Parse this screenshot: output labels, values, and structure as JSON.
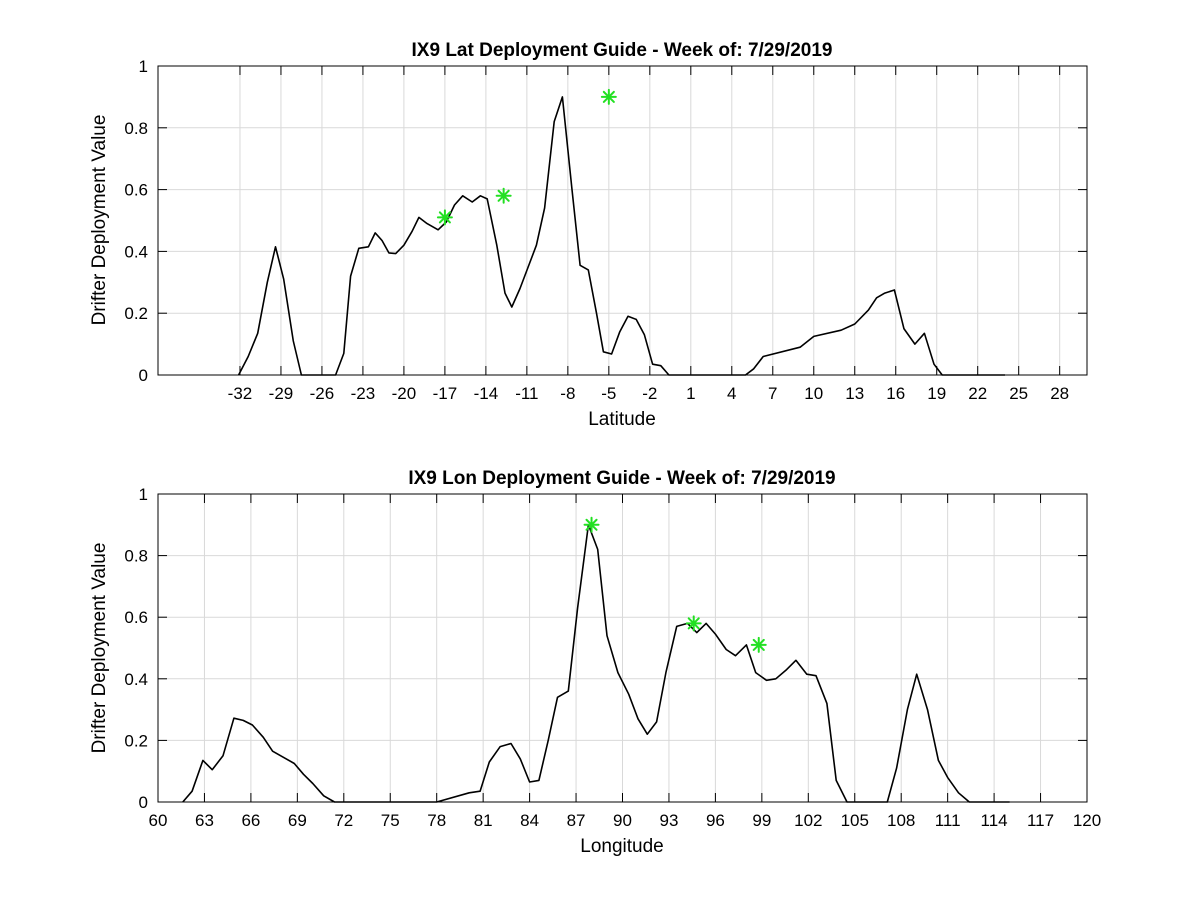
{
  "chart_data": [
    {
      "type": "line",
      "title": "IX9 Lat Deployment Guide - Week of: 7/29/2019",
      "xlabel": "Latitude",
      "ylabel": "Drifter Deployment Value",
      "xlim": [
        -38,
        30
      ],
      "ylim": [
        0,
        1
      ],
      "x_ticks": [
        -32,
        -29,
        -26,
        -23,
        -20,
        -17,
        -14,
        -11,
        -8,
        -5,
        -2,
        1,
        4,
        7,
        10,
        13,
        16,
        19,
        22,
        25,
        28
      ],
      "y_ticks": [
        0,
        0.2,
        0.4,
        0.6,
        0.8,
        1
      ],
      "y_tick_labels": [
        "0",
        "0.2",
        "0.4",
        "0.6",
        "0.8",
        "1"
      ],
      "grid": true,
      "colors": {
        "line": "#000000",
        "marker": "#22e022"
      },
      "series": [
        {
          "x": [
            -32.1,
            -31.4,
            -30.7,
            -30.0,
            -29.4,
            -28.8,
            -28.1,
            -27.5,
            -26.3,
            -25.0,
            -24.4,
            -23.9,
            -23.3,
            -22.6,
            -22.1,
            -21.6,
            -21.1,
            -20.6,
            -20.0,
            -19.4,
            -18.9,
            -18.3,
            -17.5,
            -16.9,
            -16.3,
            -15.7,
            -15.0,
            -14.4,
            -13.9,
            -13.2,
            -12.6,
            -12.1,
            -11.5,
            -10.9,
            -10.3,
            -9.7,
            -9.0,
            -8.4,
            -7.7,
            -7.1,
            -6.5,
            -5.9,
            -5.4,
            -4.8,
            -4.2,
            -3.6,
            -3.0,
            -2.4,
            -1.8,
            -1.2,
            -0.6,
            0.0,
            0.6,
            1.2,
            1.8,
            2.4,
            3.0,
            3.6,
            4.3,
            5.0,
            5.6,
            6.3,
            9.0,
            10.0,
            12.0,
            13.0,
            14.0,
            14.6,
            15.2,
            15.9,
            16.6,
            17.4,
            18.1,
            18.8,
            19.4,
            20.0,
            20.7,
            21.3,
            22.0,
            22.6,
            23.3,
            24.0
          ],
          "y": [
            0,
            0.06,
            0.135,
            0.3,
            0.415,
            0.31,
            0.11,
            0,
            0,
            0,
            0.07,
            0.32,
            0.41,
            0.415,
            0.46,
            0.435,
            0.395,
            0.393,
            0.42,
            0.465,
            0.51,
            0.49,
            0.47,
            0.495,
            0.55,
            0.58,
            0.56,
            0.58,
            0.57,
            0.42,
            0.265,
            0.22,
            0.28,
            0.35,
            0.42,
            0.54,
            0.82,
            0.9,
            0.6,
            0.355,
            0.34,
            0.2,
            0.075,
            0.068,
            0.14,
            0.19,
            0.18,
            0.13,
            0.035,
            0.03,
            0,
            0,
            0,
            0,
            0,
            0,
            0,
            0,
            0,
            0,
            0.02,
            0.06,
            0.09,
            0.125,
            0.145,
            0.165,
            0.21,
            0.25,
            0.265,
            0.275,
            0.15,
            0.1,
            0.135,
            0.035,
            0,
            0,
            0,
            0,
            0,
            0,
            0,
            0
          ]
        }
      ],
      "highlights": [
        {
          "x": -17.0,
          "y": 0.51
        },
        {
          "x": -12.7,
          "y": 0.58
        },
        {
          "x": -5.0,
          "y": 0.9
        }
      ]
    },
    {
      "type": "line",
      "title": "IX9 Lon Deployment Guide - Week of: 7/29/2019",
      "xlabel": "Longitude",
      "ylabel": "Drifter Deployment Value",
      "xlim": [
        60,
        120
      ],
      "ylim": [
        0,
        1
      ],
      "x_ticks": [
        60,
        63,
        66,
        69,
        72,
        75,
        78,
        81,
        84,
        87,
        90,
        93,
        96,
        99,
        102,
        105,
        108,
        111,
        114,
        117,
        120
      ],
      "y_ticks": [
        0,
        0.2,
        0.4,
        0.6,
        0.8,
        1
      ],
      "y_tick_labels": [
        "0",
        "0.2",
        "0.4",
        "0.6",
        "0.8",
        "1"
      ],
      "grid": true,
      "colors": {
        "line": "#000000",
        "marker": "#22e022"
      },
      "series": [
        {
          "x": [
            61.6,
            62.2,
            62.9,
            63.5,
            64.2,
            64.9,
            65.5,
            66.1,
            66.8,
            67.4,
            68.1,
            68.8,
            69.4,
            70.0,
            70.7,
            71.4,
            72.0,
            73.5,
            75.0,
            76.5,
            78.0,
            80.1,
            80.8,
            81.4,
            82.1,
            82.8,
            83.4,
            84.0,
            84.6,
            85.2,
            85.8,
            86.5,
            87.1,
            87.8,
            88.4,
            89.0,
            89.7,
            90.4,
            91.0,
            91.6,
            92.2,
            92.8,
            93.5,
            94.2,
            94.8,
            95.4,
            96.0,
            96.7,
            97.3,
            98.0,
            98.6,
            99.3,
            99.9,
            100.6,
            101.2,
            101.9,
            102.5,
            103.2,
            103.8,
            104.5,
            105.1,
            105.8,
            106.4,
            107.1,
            107.7,
            108.4,
            109.0,
            109.7,
            110.4,
            111.0,
            111.7,
            112.4,
            113.0,
            113.7,
            114.4,
            115.0
          ],
          "y": [
            0,
            0.035,
            0.135,
            0.105,
            0.15,
            0.272,
            0.265,
            0.25,
            0.21,
            0.165,
            0.145,
            0.125,
            0.09,
            0.06,
            0.02,
            0,
            0,
            0,
            0,
            0,
            0,
            0.03,
            0.035,
            0.13,
            0.18,
            0.19,
            0.14,
            0.065,
            0.07,
            0.2,
            0.34,
            0.36,
            0.63,
            0.9,
            0.82,
            0.54,
            0.42,
            0.35,
            0.27,
            0.22,
            0.26,
            0.42,
            0.57,
            0.58,
            0.55,
            0.58,
            0.545,
            0.495,
            0.475,
            0.51,
            0.42,
            0.395,
            0.4,
            0.43,
            0.46,
            0.415,
            0.41,
            0.32,
            0.07,
            0,
            0,
            0,
            0,
            0,
            0.11,
            0.3,
            0.415,
            0.3,
            0.135,
            0.08,
            0.03,
            0,
            0,
            0,
            0,
            0
          ],
          "x_fixed": true
        }
      ],
      "highlights": [
        {
          "x": 88.0,
          "y": 0.9
        },
        {
          "x": 94.6,
          "y": 0.58
        },
        {
          "x": 98.8,
          "y": 0.51
        }
      ]
    }
  ]
}
